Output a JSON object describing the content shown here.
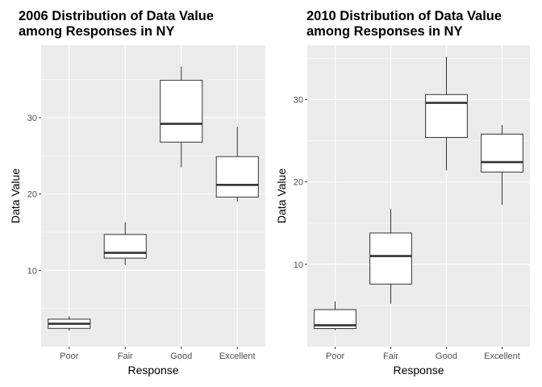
{
  "chart_data": [
    {
      "type": "boxplot",
      "title_line1": "2006 Distribution of Data Value",
      "title_line2": "among Responses in NY",
      "xlabel": "Response",
      "ylabel": "Data Value",
      "categories": [
        "Poor",
        "Fair",
        "Good",
        "Excellent"
      ],
      "ylim": [
        0,
        39.5
      ],
      "yticks": [
        10,
        20,
        30
      ],
      "boxes": [
        {
          "category": "Poor",
          "min": 2.1,
          "q1": 2.4,
          "median": 3.0,
          "q3": 3.6,
          "max": 4.0
        },
        {
          "category": "Fair",
          "min": 10.7,
          "q1": 11.6,
          "median": 12.3,
          "q3": 14.7,
          "max": 16.3
        },
        {
          "category": "Good",
          "min": 23.5,
          "q1": 26.8,
          "median": 29.2,
          "q3": 34.9,
          "max": 36.7
        },
        {
          "category": "Excellent",
          "min": 19.0,
          "q1": 19.6,
          "median": 21.2,
          "q3": 24.9,
          "max": 28.8
        }
      ],
      "grid": true
    },
    {
      "type": "boxplot",
      "title_line1": "2010 Distribution of Data Value",
      "title_line2": "among Responses in NY",
      "xlabel": "Response",
      "ylabel": "Data Value",
      "categories": [
        "Poor",
        "Fair",
        "Good",
        "Excellent"
      ],
      "ylim": [
        0,
        36.6
      ],
      "yticks": [
        10,
        20,
        30
      ],
      "boxes": [
        {
          "category": "Poor",
          "min": 2.0,
          "q1": 2.2,
          "median": 2.6,
          "q3": 4.5,
          "max": 5.5
        },
        {
          "category": "Fair",
          "min": 5.2,
          "q1": 7.6,
          "median": 11.0,
          "q3": 13.8,
          "max": 16.7
        },
        {
          "category": "Good",
          "min": 21.4,
          "q1": 25.4,
          "median": 29.6,
          "q3": 30.6,
          "max": 35.2
        },
        {
          "category": "Excellent",
          "min": 17.2,
          "q1": 21.2,
          "median": 22.4,
          "q3": 25.8,
          "max": 26.9
        }
      ],
      "grid": true
    }
  ]
}
